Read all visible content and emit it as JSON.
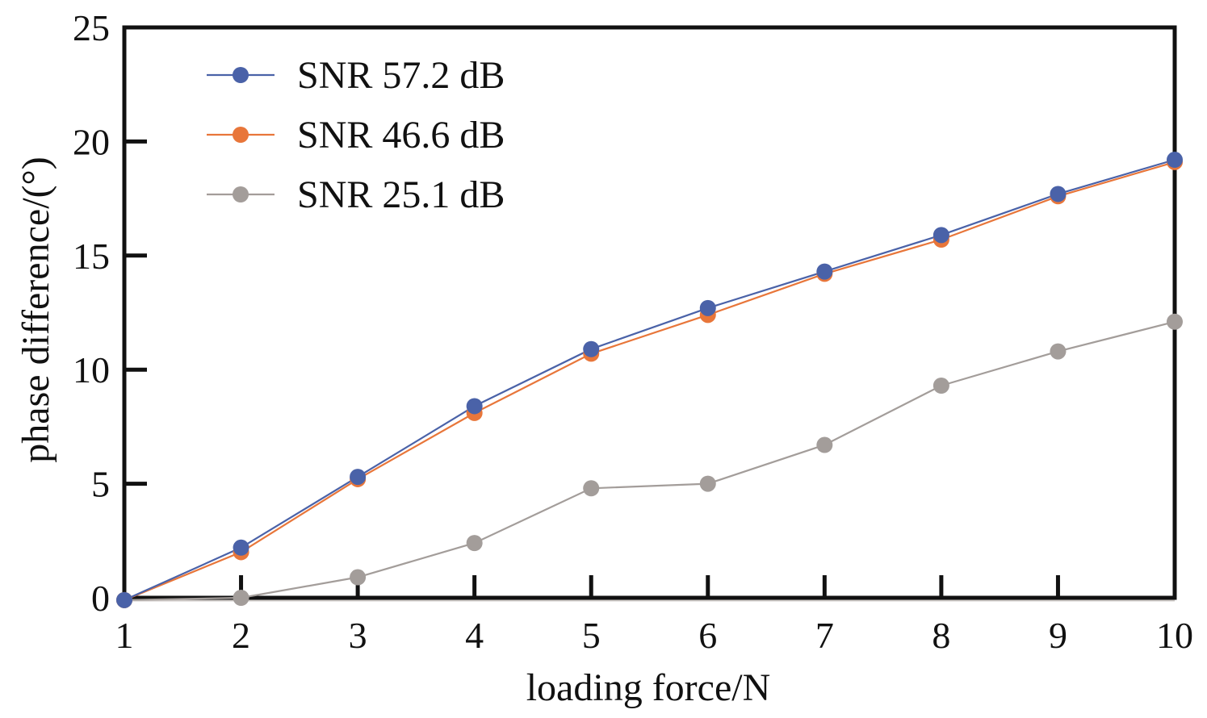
{
  "chart_data": {
    "type": "line",
    "xlabel": "loading force/N",
    "ylabel": "phase difference/(°)",
    "xlim": [
      1,
      10
    ],
    "ylim": [
      0,
      25
    ],
    "x": [
      1,
      2,
      3,
      4,
      5,
      6,
      7,
      8,
      9,
      10
    ],
    "x_ticks": [
      "1",
      "2",
      "3",
      "4",
      "5",
      "6",
      "7",
      "8",
      "9",
      "10"
    ],
    "y_ticks": [
      "0",
      "5",
      "10",
      "15",
      "20",
      "25"
    ],
    "y_tick_values": [
      0,
      5,
      10,
      15,
      20,
      25
    ],
    "grid": false,
    "legend_position": "top-left",
    "series": [
      {
        "name": "SNR 57.2 dB",
        "color": "#4a62a8",
        "values": [
          -0.1,
          2.2,
          5.3,
          8.4,
          10.9,
          12.7,
          14.3,
          15.9,
          17.7,
          19.2
        ]
      },
      {
        "name": "SNR 46.6 dB",
        "color": "#e8763a",
        "values": [
          -0.1,
          2.0,
          5.2,
          8.1,
          10.7,
          12.4,
          14.2,
          15.7,
          17.6,
          19.1
        ]
      },
      {
        "name": "SNR 25.1 dB",
        "color": "#a39d9a",
        "values": [
          -0.1,
          0.0,
          0.9,
          2.4,
          4.8,
          5.0,
          6.7,
          9.3,
          10.8,
          12.1
        ]
      }
    ]
  }
}
